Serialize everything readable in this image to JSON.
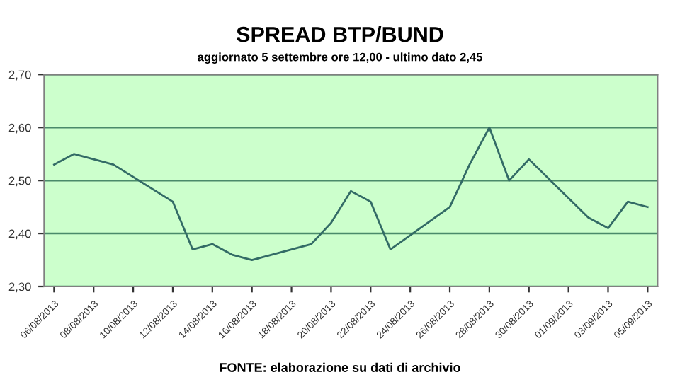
{
  "chart_data": {
    "type": "line",
    "title": "SPREAD BTP/BUND",
    "subtitle": "aggiornato 5 settembre ore 12,00 - ultimo dato 2,45",
    "annotations": [
      "FONTE: elaborazione su dati di archivio"
    ],
    "x": [
      "2013-08-06",
      "2013-08-07",
      "2013-08-08",
      "2013-08-09",
      "2013-08-12",
      "2013-08-13",
      "2013-08-14",
      "2013-08-15",
      "2013-08-16",
      "2013-08-19",
      "2013-08-20",
      "2013-08-21",
      "2013-08-22",
      "2013-08-23",
      "2013-08-26",
      "2013-08-27",
      "2013-08-28",
      "2013-08-29",
      "2013-08-30",
      "2013-09-02",
      "2013-09-03",
      "2013-09-04",
      "2013-09-05"
    ],
    "series": [
      {
        "color": "#336b66",
        "values": [
          2.53,
          2.55,
          2.54,
          2.53,
          2.46,
          2.37,
          2.38,
          2.36,
          2.35,
          2.38,
          2.42,
          2.48,
          2.46,
          2.37,
          2.45,
          2.53,
          2.6,
          2.5,
          2.54,
          2.43,
          2.41,
          2.46,
          2.45
        ]
      }
    ],
    "xlim": [
      "2013-08-05T12:00",
      "2013-09-05T12:00"
    ],
    "xticks": [
      {
        "value": "2013-08-06",
        "label": "06/08/2013"
      },
      {
        "value": "2013-08-08",
        "label": "08/08/2013"
      },
      {
        "value": "2013-08-10",
        "label": "10/08/2013"
      },
      {
        "value": "2013-08-12",
        "label": "12/08/2013"
      },
      {
        "value": "2013-08-14",
        "label": "14/08/2013"
      },
      {
        "value": "2013-08-16",
        "label": "16/08/2013"
      },
      {
        "value": "2013-08-18",
        "label": "18/08/2013"
      },
      {
        "value": "2013-08-20",
        "label": "20/08/2013"
      },
      {
        "value": "2013-08-22",
        "label": "22/08/2013"
      },
      {
        "value": "2013-08-24",
        "label": "24/08/2013"
      },
      {
        "value": "2013-08-26",
        "label": "26/08/2013"
      },
      {
        "value": "2013-08-28",
        "label": "28/08/2013"
      },
      {
        "value": "2013-08-30",
        "label": "30/08/2013"
      },
      {
        "value": "2013-09-01",
        "label": "01/09/2013"
      },
      {
        "value": "2013-09-03",
        "label": "03/09/2013"
      },
      {
        "value": "2013-09-05",
        "label": "05/09/2013"
      }
    ],
    "ylim": [
      2.3,
      2.7
    ],
    "yticks": [
      {
        "value": 2.3,
        "label": "2,30"
      },
      {
        "value": 2.4,
        "label": "2,40"
      },
      {
        "value": 2.5,
        "label": "2,50"
      },
      {
        "value": 2.6,
        "label": "2,60"
      },
      {
        "value": 2.7,
        "label": "2,70"
      }
    ],
    "grid": "y",
    "legend": false,
    "marker": "none",
    "line_style": "solid"
  }
}
